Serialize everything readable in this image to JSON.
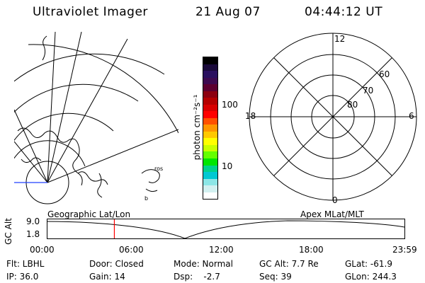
{
  "header": {
    "title": "Ultraviolet Imager",
    "date": "21 Aug 07",
    "time": "04:44:12 UT"
  },
  "geo_map": {
    "label": "Geographic Lat/Lon",
    "text_labels": [
      "ros",
      "b"
    ]
  },
  "color_bar": {
    "label": "photon cm⁻²s⁻¹",
    "ticks": [
      "100",
      "10"
    ],
    "colors": [
      "#000000",
      "#1a0a3a",
      "#2a1060",
      "#3d0a50",
      "#5c0030",
      "#8c0010",
      "#b40000",
      "#d80000",
      "#ff0000",
      "#ff5000",
      "#ff9600",
      "#ffc800",
      "#ffff00",
      "#c8ff00",
      "#64ff00",
      "#00e600",
      "#00d28c",
      "#00c8d2",
      "#8ce6e6",
      "#d2f0f0",
      "#ffffff"
    ]
  },
  "polar_plot": {
    "label": "Apex MLat/MLT",
    "mlt_labels": {
      "top": "12",
      "left": "18",
      "right": "6",
      "bottom": "0"
    },
    "lat_labels": [
      "60",
      "70",
      "80"
    ]
  },
  "altitude_plot": {
    "ylabel": "GC Alt",
    "yticks": [
      "9.0",
      "1.8"
    ],
    "xticks": [
      "00:00",
      "06:00",
      "12:00",
      "18:00",
      "23:59"
    ],
    "current_time_fraction": 0.188,
    "marker_color": "#ff0000"
  },
  "status": {
    "row1": {
      "filter": "Flt: LBHL",
      "door": "Door: Closed",
      "mode": "Mode: Normal",
      "gc_alt": "GC Alt: 7.7 Re",
      "glat": "GLat: -61.9"
    },
    "row2": {
      "ip": "IP: 36.0",
      "gain": "Gain: 14",
      "dsp": "Dsp:    -2.7",
      "seq": "Seq: 39",
      "glon": "GLon: 244.3"
    }
  }
}
